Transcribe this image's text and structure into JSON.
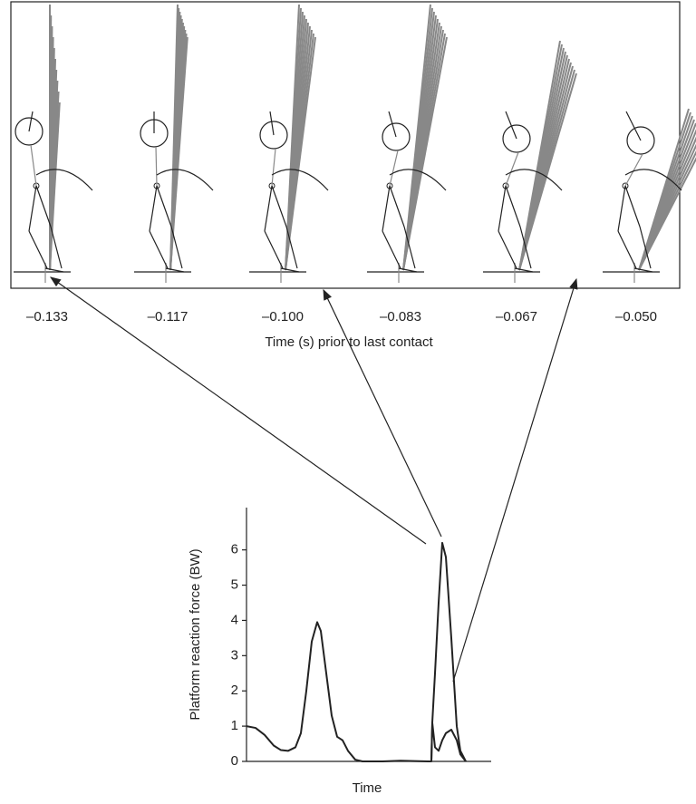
{
  "frames": {
    "labels": [
      "–0.133",
      "–0.117",
      "–0.100",
      "–0.083",
      "–0.067",
      "–0.050"
    ],
    "caption": "Time (s) prior to last contact"
  },
  "chart_data": {
    "type": "line",
    "ylabel": "Platform reaction force (BW)",
    "xlabel": "Time",
    "x": [
      0,
      10,
      20,
      30,
      38,
      46,
      54,
      60,
      66,
      72,
      78,
      82,
      88,
      94,
      100,
      106,
      112,
      120,
      128,
      150,
      170,
      200,
      204,
      205,
      208,
      212,
      216,
      220,
      226,
      232,
      236,
      242
    ],
    "series": [
      {
        "color": "#222222",
        "values": [
          1.0,
          0.95,
          0.75,
          0.45,
          0.32,
          0.3,
          0.4,
          0.8,
          2.0,
          3.4,
          3.95,
          3.7,
          2.5,
          1.3,
          0.7,
          0.6,
          0.3,
          0.05,
          0,
          0,
          0.02,
          0,
          0,
          1.1,
          2.5,
          4.5,
          6.2,
          5.8,
          3.5,
          1.0,
          0.3,
          0
        ]
      },
      {
        "color": "#222222",
        "values": [
          null,
          null,
          null,
          null,
          null,
          null,
          null,
          null,
          null,
          null,
          null,
          null,
          null,
          null,
          null,
          null,
          null,
          null,
          null,
          null,
          null,
          null,
          0,
          1.1,
          0.4,
          0.3,
          0.6,
          0.8,
          0.9,
          0.6,
          0.2,
          0
        ]
      }
    ],
    "xlim": [
      0,
      270
    ],
    "ylim": [
      0,
      7.2
    ],
    "yticks": [
      0,
      1,
      2,
      3,
      4,
      5,
      6
    ]
  }
}
